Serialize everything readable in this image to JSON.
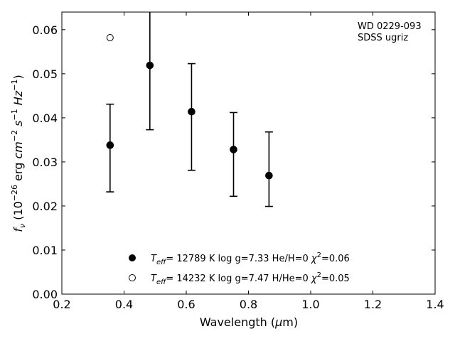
{
  "chart_data": {
    "type": "scatter",
    "xlabel_parts": [
      "Wavelength (",
      "μ",
      "m)"
    ],
    "ylabel_parts": {
      "f": "f",
      "nu": "ν",
      "unit_a": " (10",
      "exp1": "−26",
      "unit_b": " erg ",
      "cm": "cm",
      "exp2": "−2",
      "s": " s",
      "exp3": "−1",
      "hz": " Hz",
      "exp4": "−1",
      "close": ")"
    },
    "xlim": [
      0.2,
      1.4
    ],
    "ylim": [
      0.0,
      0.064
    ],
    "x_ticks": [
      "0.2",
      "0.4",
      "0.6",
      "0.8",
      "1.0",
      "1.2",
      "1.4"
    ],
    "y_ticks": [
      "0.00",
      "0.01",
      "0.02",
      "0.03",
      "0.04",
      "0.05",
      "0.06"
    ],
    "annotation_lines": [
      "WD 0229-093",
      "SDSS ugriz"
    ],
    "series": [
      {
        "name": "Teff= 12789 K  log g=7.33  He/H=0  χ2=0.06",
        "legend": {
          "T": "T",
          "eff": "eff",
          "rest": "= 12789 K  log g=7.33  He/H=0  ",
          "chi": "χ",
          "two": "2",
          "val": "=0.06"
        },
        "marker": "filled",
        "points": [
          {
            "x": 0.355,
            "y": 0.0338,
            "err_lo": 0.0232,
            "err_hi": 0.0431
          },
          {
            "x": 0.483,
            "y": 0.0519,
            "err_lo": 0.0373,
            "err_hi": 0.0645
          },
          {
            "x": 0.617,
            "y": 0.0414,
            "err_lo": 0.0281,
            "err_hi": 0.0523
          },
          {
            "x": 0.752,
            "y": 0.0328,
            "err_lo": 0.0222,
            "err_hi": 0.0412
          },
          {
            "x": 0.866,
            "y": 0.0269,
            "err_lo": 0.0199,
            "err_hi": 0.0368
          }
        ]
      },
      {
        "name": "Teff= 14232 K  log g=7.47  H/He=0  χ2=0.05",
        "legend": {
          "T": "T",
          "eff": "eff",
          "rest": "= 14232 K  log g=7.47  H/He=0  ",
          "chi": "χ",
          "two": "2",
          "val": "=0.05"
        },
        "marker": "open",
        "points": [
          {
            "x": 0.355,
            "y": 0.0582
          }
        ]
      }
    ]
  },
  "colors": {
    "marker": "#000000",
    "axes": "#000000",
    "background": "#ffffff"
  }
}
